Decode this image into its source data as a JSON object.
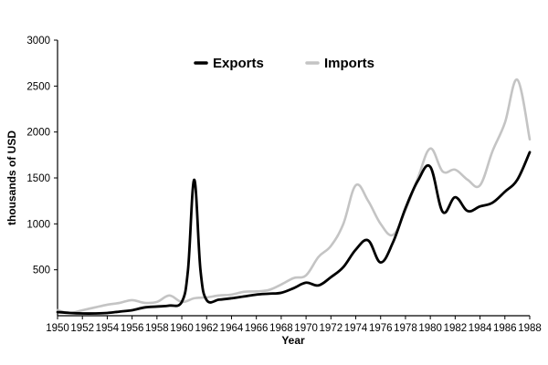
{
  "chart_data": {
    "type": "line",
    "title": "",
    "xlabel": "Year",
    "ylabel": "thousands of USD",
    "xlim": [
      1950,
      1988
    ],
    "ylim": [
      0,
      3000
    ],
    "x_ticks": [
      1950,
      1952,
      1954,
      1956,
      1958,
      1960,
      1962,
      1964,
      1966,
      1968,
      1970,
      1972,
      1974,
      1976,
      1978,
      1980,
      1982,
      1984,
      1986,
      1988
    ],
    "y_ticks": [
      500,
      1000,
      1500,
      2000,
      2500,
      3000
    ],
    "grid": false,
    "legend_position": "top-center",
    "series": [
      {
        "name": "Imports",
        "color": "#c4c4c4",
        "x": [
          1950,
          1951,
          1952,
          1953,
          1954,
          1955,
          1956,
          1957,
          1958,
          1959,
          1960,
          1961,
          1962,
          1963,
          1964,
          1965,
          1966,
          1967,
          1968,
          1969,
          1970,
          1971,
          1972,
          1973,
          1974,
          1975,
          1976,
          1977,
          1978,
          1979,
          1980,
          1981,
          1982,
          1983,
          1984,
          1985,
          1986,
          1987,
          1988
        ],
        "values": [
          60,
          30,
          60,
          90,
          120,
          140,
          170,
          140,
          150,
          220,
          150,
          190,
          200,
          220,
          230,
          260,
          265,
          280,
          340,
          410,
          440,
          640,
          760,
          1000,
          1420,
          1250,
          1000,
          880,
          1150,
          1500,
          1820,
          1570,
          1590,
          1480,
          1420,
          1790,
          2100,
          2570,
          1920
        ]
      },
      {
        "name": "Exports",
        "color": "#000000",
        "x": [
          1950,
          1951,
          1952,
          1953,
          1954,
          1955,
          1956,
          1957,
          1958,
          1959,
          1960,
          1960.5,
          1961,
          1961.5,
          1962,
          1963,
          1964,
          1965,
          1966,
          1967,
          1968,
          1969,
          1970,
          1971,
          1972,
          1973,
          1974,
          1975,
          1976,
          1977,
          1978,
          1979,
          1980,
          1981,
          1982,
          1983,
          1984,
          1985,
          1986,
          1987,
          1988
        ],
        "values": [
          40,
          30,
          25,
          25,
          30,
          45,
          60,
          90,
          100,
          110,
          150,
          500,
          1480,
          500,
          170,
          175,
          190,
          210,
          230,
          240,
          250,
          300,
          360,
          330,
          420,
          530,
          720,
          820,
          580,
          800,
          1170,
          1470,
          1620,
          1130,
          1290,
          1140,
          1190,
          1230,
          1350,
          1480,
          1780
        ]
      }
    ]
  }
}
